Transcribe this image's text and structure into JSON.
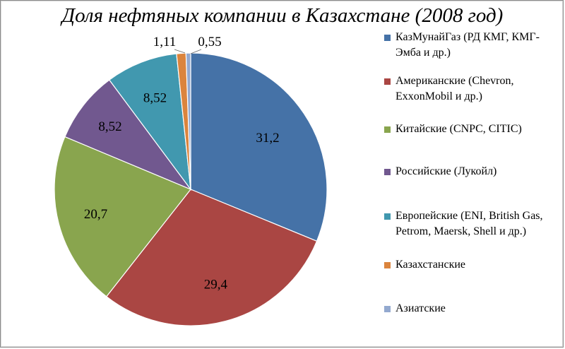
{
  "chart_data": {
    "type": "pie",
    "title": "Доля нефтяных компании в Казахстане (2008 год)",
    "slices": [
      {
        "label": "КазМунайГаз (РД КМГ, КМГ-Эмба и др.)",
        "value": 31.2,
        "value_text": "31,2",
        "color": "#4572a7"
      },
      {
        "label": "Американские (Chevron, ExxonMobil и др.)",
        "value": 29.4,
        "value_text": "29,4",
        "color": "#aa4643"
      },
      {
        "label": "Китайские (CNPC, CITIC)",
        "value": 20.7,
        "value_text": "20,7",
        "color": "#89a54e"
      },
      {
        "label": "Российские (Лукойл)",
        "value": 8.52,
        "value_text": "8,52",
        "color": "#71588f"
      },
      {
        "label": "Европейские (ENI, British Gas, Petrom, Maersk, Shell и др.)",
        "value": 8.52,
        "value_text": "8,52",
        "color": "#4198af"
      },
      {
        "label": "Казахстанские",
        "value": 1.11,
        "value_text": "1,11",
        "color": "#db843d"
      },
      {
        "label": "Азиатские",
        "value": 0.55,
        "value_text": "0,55",
        "color": "#93a9cf"
      }
    ],
    "start_angle_deg": 0,
    "direction": "clockwise",
    "legend_position": "right"
  }
}
